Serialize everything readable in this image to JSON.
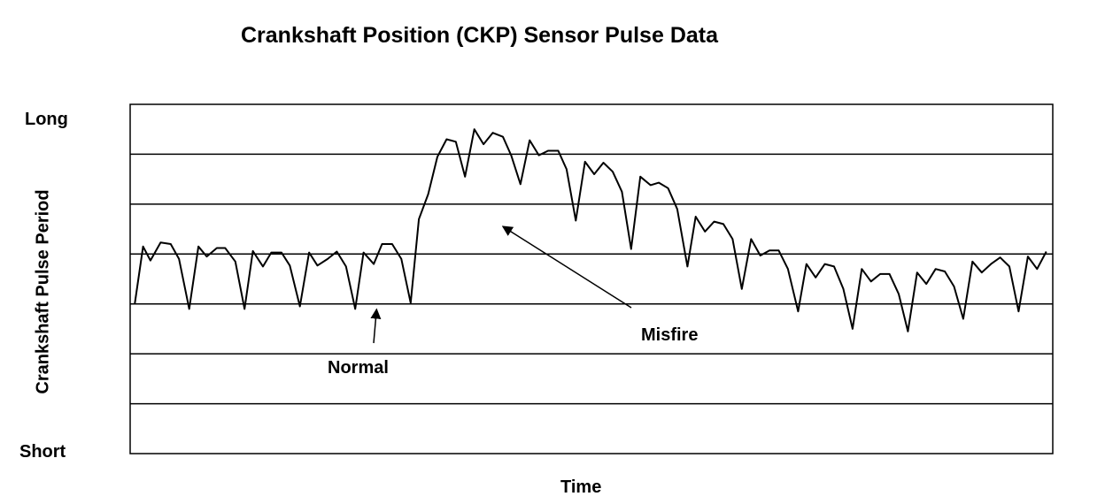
{
  "chart_data": {
    "type": "line",
    "title": "Crankshaft Position (CKP) Sensor Pulse Data",
    "xlabel": "Time",
    "ylabel": "Crankshaft Pulse Period",
    "y_top_label": "Long",
    "y_bottom_label": "Short",
    "xlim": [
      0,
      100
    ],
    "ylim": [
      0,
      7
    ],
    "grid_rows": 7,
    "grid": true,
    "line_color": "#000000",
    "annotations": [
      {
        "text": "Normal",
        "target": [
          27,
          3
        ]
      },
      {
        "text": "Misfire",
        "target": [
          40,
          4.5
        ]
      }
    ],
    "series": [
      {
        "x": [
          0.5,
          1.4,
          2.2,
          3.3,
          4.4,
          5.3,
          6.4,
          7.4,
          8.3,
          9.4,
          10.3,
          11.4,
          12.4,
          13.3,
          14.4,
          15.3,
          16.4,
          17.3,
          18.4,
          19.4,
          20.3,
          21.4,
          22.4,
          23.4,
          24.4,
          25.3,
          26.4,
          27.3,
          28.4,
          29.4,
          30.4,
          31.3,
          32.3,
          33.3,
          34.3,
          35.3,
          36.3,
          37.3,
          38.3,
          39.3,
          40.4,
          41.3,
          42.3,
          43.3,
          44.3,
          45.3,
          46.4,
          47.3,
          48.3,
          49.3,
          50.3,
          51.3,
          52.3,
          53.3,
          54.3,
          55.3,
          56.4,
          57.3,
          58.3,
          59.3,
          60.4,
          61.3,
          62.3,
          63.3,
          64.3,
          65.3,
          66.3,
          67.3,
          68.3,
          69.3,
          70.3,
          71.3,
          72.4,
          73.3,
          74.3,
          75.3,
          76.3,
          77.3,
          78.3,
          79.3,
          80.3,
          81.3,
          82.3,
          83.3,
          84.3,
          85.3,
          86.3,
          87.3,
          88.3,
          89.3,
          90.3,
          91.3,
          92.3,
          93.3,
          94.3,
          95.3,
          96.3,
          97.3,
          98.3,
          99.3
        ],
        "values": [
          3,
          4.15,
          3.87,
          4.23,
          4.2,
          3.9,
          2.9,
          4.15,
          3.95,
          4.12,
          4.12,
          3.85,
          2.9,
          4.06,
          3.75,
          4.03,
          4.03,
          3.77,
          2.95,
          4.03,
          3.77,
          3.9,
          4.05,
          3.75,
          2.9,
          4.03,
          3.8,
          4.2,
          4.2,
          3.9,
          3.02,
          4.7,
          5.2,
          5.95,
          6.3,
          6.25,
          5.55,
          6.5,
          6.2,
          6.43,
          6.35,
          5.98,
          5.4,
          6.28,
          5.98,
          6.07,
          6.07,
          5.7,
          4.67,
          5.85,
          5.6,
          5.83,
          5.65,
          5.25,
          4.1,
          5.55,
          5.38,
          5.43,
          5.32,
          4.9,
          3.75,
          4.75,
          4.45,
          4.65,
          4.6,
          4.3,
          3.3,
          4.3,
          3.97,
          4.07,
          4.07,
          3.7,
          2.85,
          3.8,
          3.53,
          3.8,
          3.75,
          3.3,
          2.5,
          3.7,
          3.45,
          3.6,
          3.6,
          3.2,
          2.45,
          3.63,
          3.4,
          3.7,
          3.65,
          3.35,
          2.7,
          3.85,
          3.63,
          3.8,
          3.93,
          3.75,
          2.85,
          3.95,
          3.7,
          4.05
        ]
      }
    ]
  }
}
